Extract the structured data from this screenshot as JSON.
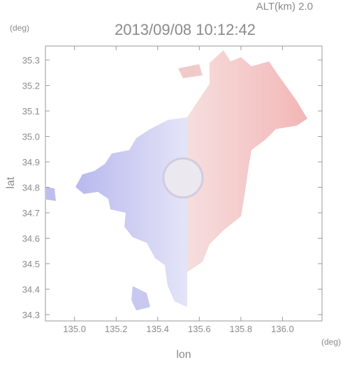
{
  "chart_data": {
    "type": "map",
    "title": "2013/09/08 10:12:42",
    "altitude_label": "ALT(km) 2.0",
    "y_unit": "(deg)",
    "x_unit": "(deg)",
    "xlabel": "lon",
    "ylabel": "lat",
    "xlim": [
      134.86,
      136.19
    ],
    "ylim": [
      34.275,
      35.355
    ],
    "xticks": [
      {
        "value": 135,
        "label": "135.0"
      },
      135.2,
      135.4,
      135.6,
      135.8,
      {
        "value": 136,
        "label": "136.0"
      }
    ],
    "yticks": [
      34.3,
      34.4,
      34.5,
      34.6,
      34.7,
      34.8,
      34.9,
      {
        "value": 35,
        "label": "35.0"
      },
      35.1,
      35.2,
      35.3
    ]
  }
}
